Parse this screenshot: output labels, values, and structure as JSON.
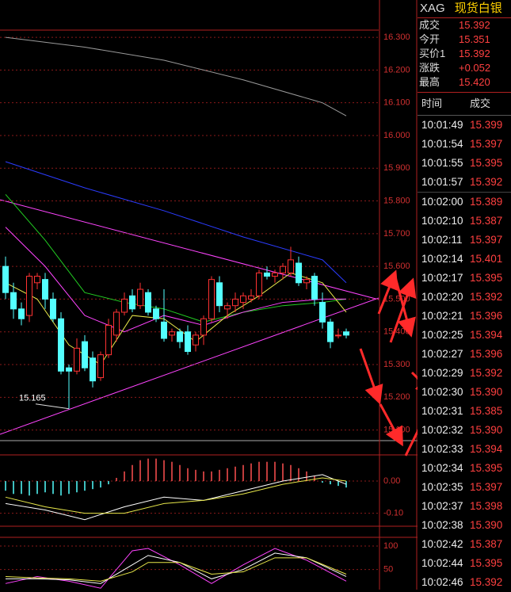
{
  "header": {
    "symbol": "XAG",
    "name": "现货白银"
  },
  "quote": [
    {
      "label": "成交",
      "value": "15.392"
    },
    {
      "label": "今开",
      "value": "15.351"
    },
    {
      "label": "买价1",
      "value": "15.392"
    },
    {
      "label": "涨跌",
      "value": "+0.052"
    },
    {
      "label": "最高",
      "value": "15.420"
    }
  ],
  "trades": {
    "columns": [
      "时间",
      "成交"
    ],
    "rows": [
      [
        "10:01:49",
        "15.399"
      ],
      [
        "10:01:54",
        "15.397"
      ],
      [
        "10:01:55",
        "15.395"
      ],
      [
        "10:01:57",
        "15.392"
      ],
      [
        "10:02:00",
        "15.389"
      ],
      [
        "10:02:10",
        "15.387"
      ],
      [
        "10:02:11",
        "15.397"
      ],
      [
        "10:02:14",
        "15.401"
      ],
      [
        "10:02:17",
        "15.395"
      ],
      [
        "10:02:20",
        "15.392"
      ],
      [
        "10:02:21",
        "15.396"
      ],
      [
        "10:02:25",
        "15.394"
      ],
      [
        "10:02:27",
        "15.396"
      ],
      [
        "10:02:29",
        "15.392"
      ],
      [
        "10:02:30",
        "15.390"
      ],
      [
        "10:02:31",
        "15.385"
      ],
      [
        "10:02:32",
        "15.390"
      ],
      [
        "10:02:33",
        "15.394"
      ],
      [
        "10:02:34",
        "15.395"
      ],
      [
        "10:02:35",
        "15.397"
      ],
      [
        "10:02:37",
        "15.398"
      ],
      [
        "10:02:38",
        "15.390"
      ],
      [
        "10:02:42",
        "15.387"
      ],
      [
        "10:02:44",
        "15.395"
      ],
      [
        "10:02:46",
        "15.392"
      ]
    ]
  },
  "chart_data": [
    {
      "type": "candlestick",
      "up_color": "#ff3232",
      "down_color": "#54ffff",
      "open": [
        15.6,
        15.52,
        15.47,
        15.45,
        15.55,
        15.56,
        15.5,
        15.44,
        15.29,
        15.28,
        15.37,
        15.32,
        15.26,
        15.33,
        15.39,
        15.46,
        15.51,
        15.48,
        15.52,
        15.47,
        15.43,
        15.39,
        15.4,
        15.4,
        15.36,
        15.39,
        15.44,
        15.55,
        15.47,
        15.48,
        15.49,
        15.5,
        15.51,
        15.58,
        15.57,
        15.58,
        15.58,
        15.61,
        15.55,
        15.57,
        15.49,
        15.43,
        15.39,
        15.4
      ],
      "high": [
        15.63,
        15.55,
        15.49,
        15.58,
        15.58,
        15.58,
        15.52,
        15.46,
        15.3,
        15.38,
        15.39,
        15.34,
        15.34,
        15.44,
        15.47,
        15.52,
        15.53,
        15.55,
        15.53,
        15.48,
        15.53,
        15.41,
        15.41,
        15.42,
        15.4,
        15.45,
        15.57,
        15.57,
        15.49,
        15.52,
        15.52,
        15.53,
        15.59,
        15.6,
        15.59,
        15.61,
        15.66,
        15.63,
        15.57,
        15.58,
        15.52,
        15.44,
        15.41,
        15.41
      ],
      "low": [
        15.5,
        15.44,
        15.42,
        15.43,
        15.53,
        15.47,
        15.43,
        15.27,
        15.165,
        15.27,
        15.28,
        15.23,
        15.25,
        15.32,
        15.37,
        15.45,
        15.46,
        15.47,
        15.45,
        15.43,
        15.37,
        15.37,
        15.35,
        15.33,
        15.34,
        15.36,
        15.43,
        15.46,
        15.44,
        15.46,
        15.47,
        15.49,
        15.5,
        15.56,
        15.55,
        15.56,
        15.57,
        15.54,
        15.53,
        15.48,
        15.41,
        15.35,
        15.38,
        15.38
      ],
      "close": [
        15.52,
        15.47,
        15.44,
        15.57,
        15.57,
        15.5,
        15.44,
        15.28,
        15.28,
        15.35,
        15.29,
        15.25,
        15.33,
        15.42,
        15.46,
        15.5,
        15.47,
        15.53,
        15.46,
        15.44,
        15.38,
        15.4,
        15.37,
        15.34,
        15.39,
        15.44,
        15.56,
        15.48,
        15.48,
        15.5,
        15.51,
        15.51,
        15.58,
        15.57,
        15.58,
        15.6,
        15.62,
        15.55,
        15.56,
        15.5,
        15.43,
        15.37,
        15.39,
        15.39
      ],
      "low_label": "15.165",
      "series": [
        {
          "color": "#9a9a9a",
          "x": [
            0,
            10,
            20,
            30,
            40,
            43
          ],
          "values": [
            16.3,
            16.27,
            16.23,
            16.17,
            16.1,
            16.06
          ]
        },
        {
          "color": "#2b3cff",
          "x": [
            0,
            10,
            20,
            30,
            40,
            43
          ],
          "values": [
            15.92,
            15.84,
            15.77,
            15.69,
            15.62,
            15.55
          ]
        },
        {
          "color": "#22cc22",
          "x": [
            0,
            5,
            10,
            15,
            20,
            25,
            30,
            35,
            40,
            43
          ],
          "values": [
            15.82,
            15.68,
            15.52,
            15.49,
            15.47,
            15.43,
            15.46,
            15.48,
            15.49,
            15.5
          ]
        },
        {
          "color": "#ff44ff",
          "x": [
            0,
            5,
            10,
            15,
            20,
            25,
            30,
            35,
            40,
            43
          ],
          "values": [
            15.72,
            15.6,
            15.45,
            15.4,
            15.45,
            15.42,
            15.46,
            15.49,
            15.5,
            15.5
          ]
        },
        {
          "color": "#e8e84a",
          "x": [
            0,
            4,
            8,
            12,
            16,
            20,
            24,
            28,
            32,
            36,
            40,
            43
          ],
          "values": [
            15.55,
            15.5,
            15.36,
            15.3,
            15.45,
            15.44,
            15.37,
            15.45,
            15.51,
            15.58,
            15.55,
            15.46
          ]
        }
      ],
      "ylim": [
        15.07,
        16.414
      ],
      "yticks": [
        {
          "value": 16.3,
          "label": "16.300"
        },
        {
          "value": 16.2,
          "label": "16.200"
        },
        {
          "value": 16.1,
          "label": "16.100"
        },
        {
          "value": 16.0,
          "label": "16.000"
        },
        {
          "value": 15.9,
          "label": "15.900"
        },
        {
          "value": 15.8,
          "label": "15.800"
        },
        {
          "value": 15.7,
          "label": "15.700"
        },
        {
          "value": 15.6,
          "label": "15.600"
        },
        {
          "value": 15.5,
          "label": "15.500"
        },
        {
          "value": 15.4,
          "label": "15.400"
        },
        {
          "value": 15.3,
          "label": "15.300"
        },
        {
          "value": 15.2,
          "label": "15.200"
        },
        {
          "value": 15.1,
          "label": "15.100"
        }
      ],
      "grid": true
    },
    {
      "type": "bar",
      "up_color": "#ff5050",
      "down_color": "#54ffff",
      "values": [
        -0.03,
        -0.04,
        -0.04,
        -0.045,
        -0.04,
        -0.035,
        -0.04,
        -0.045,
        -0.04,
        -0.035,
        -0.03,
        -0.025,
        -0.02,
        -0.01,
        0.01,
        0.03,
        0.05,
        0.065,
        0.07,
        0.07,
        0.065,
        0.06,
        0.05,
        0.04,
        0.035,
        0.03,
        0.03,
        0.035,
        0.04,
        0.045,
        0.05,
        0.055,
        0.06,
        0.06,
        0.06,
        0.055,
        0.05,
        0.04,
        0.03,
        0.015,
        -0.005,
        -0.01,
        -0.015,
        -0.02
      ],
      "series": [
        {
          "color": "#ffffff",
          "x": [
            0,
            5,
            10,
            15,
            20,
            25,
            30,
            35,
            40,
            43
          ],
          "values": [
            -0.07,
            -0.09,
            -0.12,
            -0.08,
            -0.05,
            -0.06,
            -0.03,
            0.0,
            0.02,
            -0.01
          ]
        },
        {
          "color": "#e8e84a",
          "x": [
            0,
            5,
            10,
            15,
            20,
            25,
            30,
            35,
            40,
            43
          ],
          "values": [
            -0.05,
            -0.08,
            -0.1,
            -0.1,
            -0.07,
            -0.06,
            -0.04,
            -0.01,
            0.01,
            0.0
          ]
        }
      ],
      "ylim": [
        -0.138,
        0.079
      ],
      "yticks": [
        {
          "value": 0,
          "label": "0.00"
        },
        {
          "value": -0.1,
          "label": "-0.10"
        }
      ],
      "grid": true
    },
    {
      "type": "line",
      "series": [
        {
          "color": "#ff44ff",
          "x": [
            0,
            4,
            8,
            12,
            16,
            18,
            22,
            26,
            30,
            34,
            38,
            43
          ],
          "values": [
            20,
            35,
            25,
            10,
            90,
            95,
            60,
            20,
            60,
            95,
            70,
            25
          ]
        },
        {
          "color": "#ffffff",
          "x": [
            0,
            4,
            8,
            12,
            16,
            18,
            22,
            26,
            30,
            34,
            38,
            43
          ],
          "values": [
            30,
            30,
            28,
            20,
            60,
            80,
            65,
            30,
            50,
            85,
            75,
            35
          ]
        },
        {
          "color": "#e8e84a",
          "x": [
            0,
            4,
            8,
            12,
            16,
            18,
            22,
            26,
            30,
            34,
            38,
            43
          ],
          "values": [
            35,
            32,
            30,
            25,
            45,
            65,
            65,
            40,
            45,
            75,
            75,
            40
          ]
        }
      ],
      "ylim": [
        7,
        117
      ],
      "yticks": [
        100,
        50
      ],
      "grid": true
    }
  ]
}
